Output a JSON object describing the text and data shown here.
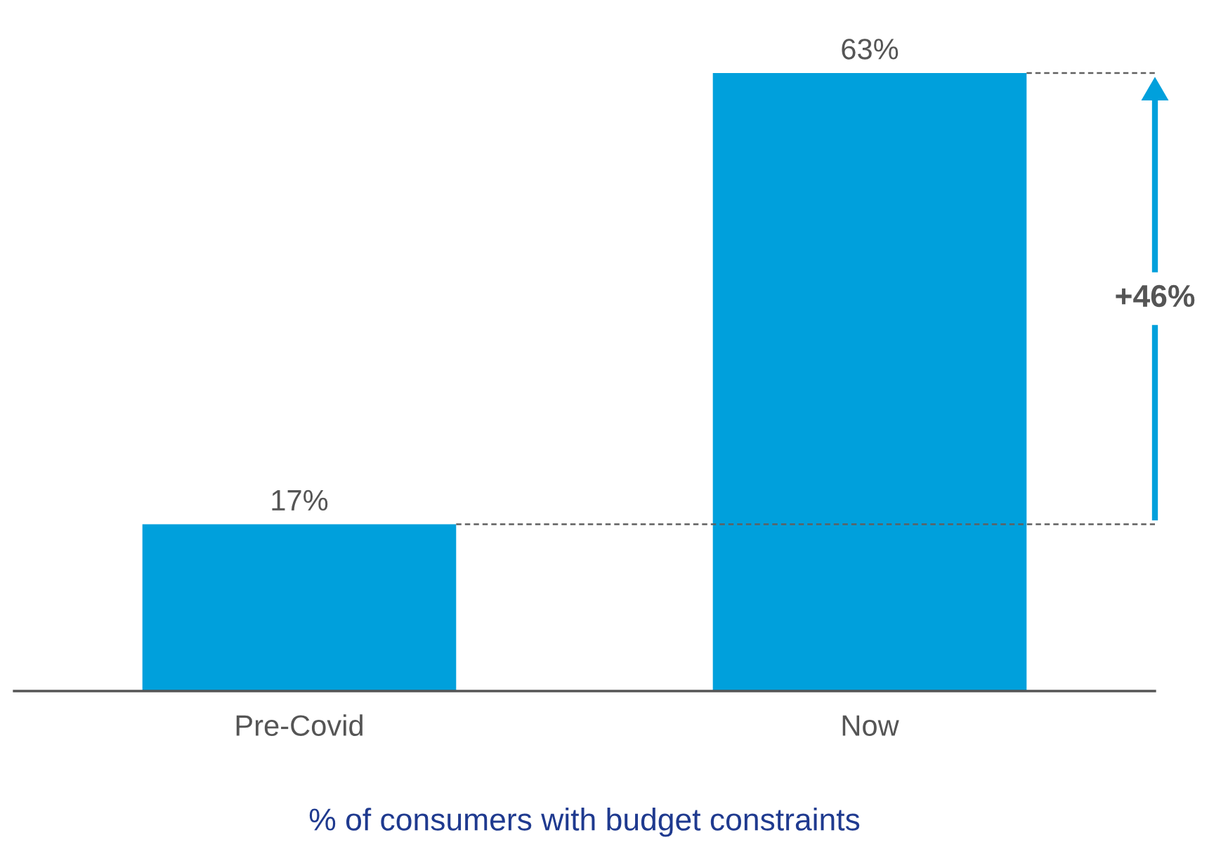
{
  "chart_data": {
    "type": "bar",
    "categories": [
      "Pre-Covid",
      "Now"
    ],
    "values": [
      17,
      63
    ],
    "color": "#00a0dc",
    "data_labels": true,
    "value_labels": [
      "17%",
      "63%"
    ],
    "xlabel": "% of consumers with budget constraints",
    "ref_lines": [
      {
        "axis": "y",
        "value": 17,
        "line_style": "dashed",
        "color": "#606060"
      },
      {
        "axis": "y",
        "value": 63,
        "line_style": "dashed",
        "color": "#606060"
      }
    ],
    "annotations": [
      "+46%"
    ],
    "grid": false,
    "legend": false
  }
}
